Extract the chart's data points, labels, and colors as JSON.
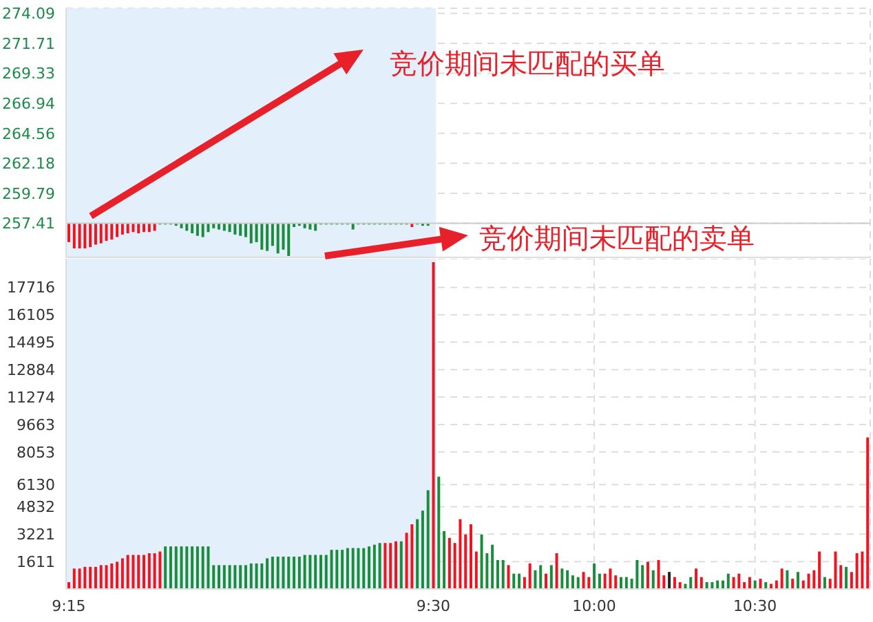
{
  "chart_data": [
    {
      "type": "bar",
      "categories": [
        "9:15",
        null,
        null,
        null,
        null,
        null,
        null,
        null,
        null,
        null,
        null,
        null,
        null,
        null,
        null,
        null,
        null,
        null,
        null,
        null,
        null,
        null,
        null,
        null,
        null,
        null,
        null,
        null,
        null,
        null,
        null,
        null,
        null,
        null,
        null,
        null,
        null,
        null,
        null,
        null,
        null,
        null,
        null,
        null,
        null,
        null,
        null,
        null,
        null,
        null,
        null,
        null,
        null,
        null,
        null,
        null,
        null,
        null,
        null,
        null,
        null,
        null,
        null,
        null,
        null,
        null,
        null,
        null,
        "9:30",
        null,
        null,
        null,
        null,
        null,
        null,
        null,
        null,
        null,
        null,
        null,
        null,
        null,
        null,
        null,
        null,
        null,
        null,
        null,
        null,
        null,
        null,
        null,
        null,
        null,
        null,
        null,
        null,
        null,
        "10:00",
        null,
        null,
        null,
        null,
        null,
        null,
        null,
        null,
        null,
        null,
        null,
        null,
        null,
        null,
        null,
        null,
        null,
        null,
        null,
        null,
        null,
        null,
        null,
        null,
        null,
        null,
        null,
        null,
        null,
        "10:30",
        null,
        null,
        null,
        null,
        null,
        null,
        null,
        null,
        null,
        null,
        null,
        null,
        null,
        null,
        null,
        null,
        null,
        null,
        null,
        null,
        null
      ],
      "series": [
        {
          "values": [
            -1.5,
            -2.0,
            -2.0,
            -2.0,
            -1.9,
            -1.7,
            -1.6,
            -1.4,
            -1.3,
            -1.1,
            -0.9,
            -0.8,
            -0.7,
            -0.8,
            -0.7,
            -0.7,
            -0.6,
            -0.1,
            -0.1,
            -0.1,
            -0.2,
            -0.4,
            -0.6,
            -0.8,
            -1.0,
            -1.1,
            -0.7,
            -0.4,
            -0.5,
            -0.6,
            -0.7,
            -0.9,
            -1.0,
            -1.1,
            -1.6,
            -1.5,
            -2.1,
            -2.2,
            -1.8,
            -2.4,
            -2.1,
            -2.6,
            -0.3,
            -0.2,
            -0.4,
            -0.5,
            -0.6,
            -0.1,
            -0.1,
            -0.1,
            -0.1,
            -0.1,
            -0.1,
            -0.5,
            -0.1,
            -0.1,
            -0.1,
            -0.1,
            -0.1,
            -0.1,
            -0.1,
            -0.1,
            -0.1,
            -0.1,
            -0.3,
            -0.1,
            -0.2,
            -0.2,
            null,
            null,
            null,
            null,
            null,
            null,
            null,
            null,
            null,
            null,
            null,
            null,
            null,
            null,
            null,
            null,
            null,
            null,
            null,
            null,
            null,
            null,
            null,
            null,
            null,
            null,
            null,
            null,
            null,
            null,
            null,
            null,
            null,
            null,
            null,
            null,
            null,
            null,
            null,
            null,
            null,
            null,
            null,
            null,
            null,
            null,
            null,
            null,
            null,
            null,
            null,
            null,
            null,
            null,
            null,
            null,
            null,
            null,
            null,
            null,
            null,
            null,
            null,
            null,
            null,
            null,
            null,
            null,
            null,
            null,
            null,
            null,
            null,
            null,
            null,
            null,
            null,
            null,
            null,
            null,
            null,
            null
          ],
          "colors": [
            "#f0141e",
            "#f0141e",
            "#f0141e",
            "#f0141e",
            "#f0141e",
            "#f0141e",
            "#f0141e",
            "#f0141e",
            "#f0141e",
            "#f0141e",
            "#f0141e",
            "#f0141e",
            "#f0141e",
            "#f0141e",
            "#f0141e",
            "#f0141e",
            "#f0141e",
            "#1a8c3c",
            "#1a8c3c",
            "#1a8c3c",
            "#1a8c3c",
            "#1a8c3c",
            "#1a8c3c",
            "#1a8c3c",
            "#1a8c3c",
            "#1a8c3c",
            "#1a8c3c",
            "#1a8c3c",
            "#1a8c3c",
            "#1a8c3c",
            "#1a8c3c",
            "#1a8c3c",
            "#1a8c3c",
            "#1a8c3c",
            "#1a8c3c",
            "#1a8c3c",
            "#1a8c3c",
            "#1a8c3c",
            "#1a8c3c",
            "#1a8c3c",
            "#1a8c3c",
            "#1a8c3c",
            "#1a8c3c",
            "#1a8c3c",
            "#1a8c3c",
            "#1a8c3c",
            "#1a8c3c",
            "#1a8c3c",
            "#1a8c3c",
            "#1a8c3c",
            "#1a8c3c",
            "#1a8c3c",
            "#1a8c3c",
            "#1a8c3c",
            "#1a8c3c",
            "#1a8c3c",
            "#1a8c3c",
            "#1a8c3c",
            "#1a8c3c",
            "#1a8c3c",
            "#1a8c3c",
            "#1a8c3c",
            "#1a8c3c",
            "#1a8c3c",
            "#f0141e",
            "#1a8c3c",
            "#1a8c3c",
            "#1a8c3c",
            null,
            null,
            null,
            null,
            null,
            null,
            null,
            null,
            null,
            null,
            null,
            null,
            null,
            null,
            null,
            null,
            null,
            null,
            null,
            null,
            null,
            null,
            null,
            null,
            null,
            null,
            null,
            null,
            null,
            null,
            null,
            null,
            null,
            null,
            null,
            null,
            null,
            null,
            null,
            null,
            null,
            null,
            null,
            null,
            null,
            null,
            null,
            null,
            null,
            null,
            null,
            null,
            null,
            null,
            null,
            null,
            null,
            null,
            null,
            null,
            null,
            null,
            null,
            null,
            null,
            null,
            null,
            null,
            null,
            null,
            null,
            null,
            null,
            null,
            null,
            null,
            null,
            null,
            null,
            null,
            null,
            null
          ],
          "base": [
            257.41,
            257.41,
            257.41,
            257.41,
            257.41,
            257.41,
            257.41,
            257.41,
            257.41,
            257.41,
            257.41,
            257.41,
            257.41,
            257.41,
            257.41,
            257.41,
            257.41,
            257.41,
            257.41,
            257.41,
            257.41,
            257.41,
            257.41,
            257.41,
            257.41,
            257.41,
            257.41,
            257.41,
            257.41,
            257.41,
            257.41,
            257.41,
            257.41,
            257.41,
            257.41,
            257.41,
            257.41,
            257.41,
            257.41,
            257.41,
            257.41,
            257.41,
            257.41,
            257.41,
            257.41,
            257.41,
            257.41,
            257.41,
            257.41,
            257.41,
            257.41,
            257.41,
            257.41,
            257.41,
            257.41,
            257.41,
            257.41,
            257.41,
            257.41,
            257.41,
            257.41,
            257.41,
            257.41,
            257.41,
            257.41,
            257.41,
            257.41,
            257.41,
            null,
            null,
            null,
            null,
            null,
            null,
            null,
            null,
            null,
            null,
            null,
            null,
            null,
            null,
            null,
            null,
            null,
            null,
            null,
            null,
            null,
            null,
            null,
            null,
            null,
            null,
            null,
            null,
            null,
            null,
            null,
            null,
            null,
            null,
            null,
            null,
            null,
            null,
            null,
            null,
            null,
            null,
            null,
            null,
            null,
            null,
            null,
            null,
            null,
            null,
            null,
            null,
            null,
            null,
            null,
            null,
            null,
            null,
            null,
            null,
            null,
            null,
            null,
            null,
            null,
            null,
            null,
            null,
            null,
            null,
            null,
            null,
            null,
            null,
            null,
            null,
            null,
            null,
            null,
            null,
            null,
            null
          ]
        }
      ],
      "ylim": [
        254.7,
        274.5
      ],
      "yticks": [
        257.41,
        259.79,
        262.18,
        264.56,
        266.94,
        269.33,
        271.71,
        274.09
      ],
      "tick_labels": "y",
      "grid": true,
      "ref_lines": [
        {
          "axis": "y",
          "value": 257.41,
          "color": "#cccccc",
          "line_style": "solid"
        }
      ],
      "bands": [
        {
          "axis": "x",
          "from": "9:15",
          "to": "9:30",
          "color": "#e3f0fc"
        }
      ],
      "annotations": [
        "竞价期间未匹配的买单",
        "竞价期间未匹配的卖单"
      ]
    },
    {
      "type": "bar",
      "categories": [
        "9:15",
        null,
        null,
        null,
        null,
        null,
        null,
        null,
        null,
        null,
        null,
        null,
        null,
        null,
        null,
        null,
        null,
        null,
        null,
        null,
        null,
        null,
        null,
        null,
        null,
        null,
        null,
        null,
        null,
        null,
        null,
        null,
        null,
        null,
        null,
        null,
        null,
        null,
        null,
        null,
        null,
        null,
        null,
        null,
        null,
        null,
        null,
        null,
        null,
        null,
        null,
        null,
        null,
        null,
        null,
        null,
        null,
        null,
        null,
        null,
        null,
        null,
        null,
        null,
        null,
        null,
        null,
        null,
        "9:30",
        null,
        null,
        null,
        null,
        null,
        null,
        null,
        null,
        null,
        null,
        null,
        null,
        null,
        null,
        null,
        null,
        null,
        null,
        null,
        null,
        null,
        null,
        null,
        null,
        null,
        null,
        null,
        null,
        null,
        "10:00",
        null,
        null,
        null,
        null,
        null,
        null,
        null,
        null,
        null,
        null,
        null,
        null,
        null,
        null,
        null,
        null,
        null,
        null,
        null,
        null,
        null,
        null,
        null,
        null,
        null,
        null,
        null,
        null,
        null,
        "10:30",
        null,
        null,
        null,
        null,
        null,
        null,
        null,
        null,
        null,
        null,
        null,
        null,
        null,
        null,
        null,
        null,
        null,
        null,
        null,
        null,
        null
      ],
      "values": [
        400,
        1200,
        1200,
        1300,
        1300,
        1300,
        1400,
        1400,
        1500,
        1600,
        1800,
        2000,
        2000,
        2000,
        2000,
        2100,
        2100,
        2200,
        2500,
        2500,
        2500,
        2500,
        2500,
        2500,
        2500,
        2500,
        2500,
        1400,
        1400,
        1400,
        1400,
        1400,
        1400,
        1400,
        1500,
        1500,
        1500,
        1800,
        1900,
        1900,
        1900,
        1900,
        1900,
        1900,
        2000,
        2000,
        2000,
        2000,
        2000,
        2300,
        2300,
        2300,
        2400,
        2400,
        2400,
        2400,
        2500,
        2600,
        2700,
        2700,
        2700,
        2800,
        2800,
        3300,
        3800,
        4100,
        4600,
        5800,
        19200,
        6600,
        3400,
        3000,
        2700,
        4100,
        3200,
        3800,
        2200,
        3200,
        2100,
        2600,
        1700,
        1700,
        1400,
        900,
        900,
        700,
        1500,
        1100,
        1400,
        900,
        1400,
        2100,
        1200,
        1100,
        800,
        700,
        1000,
        700,
        1500,
        900,
        900,
        1200,
        800,
        700,
        700,
        600,
        1700,
        1400,
        1600,
        1100,
        1700,
        800,
        1000,
        700,
        400,
        300,
        700,
        1200,
        700,
        400,
        400,
        500,
        500,
        900,
        700,
        900,
        400,
        700,
        500,
        600,
        400,
        300,
        500,
        1200,
        1100,
        600,
        1000,
        500,
        900,
        1100,
        2200,
        700,
        600,
        2200,
        1400,
        1300,
        1000,
        2100,
        2200,
        8900
      ],
      "colors": [
        "#f0141e",
        "#f0141e",
        "#f0141e",
        "#f0141e",
        "#f0141e",
        "#f0141e",
        "#f0141e",
        "#f0141e",
        "#f0141e",
        "#f0141e",
        "#f0141e",
        "#f0141e",
        "#f0141e",
        "#f0141e",
        "#f0141e",
        "#f0141e",
        "#f0141e",
        "#f0141e",
        "#1a8c3c",
        "#1a8c3c",
        "#1a8c3c",
        "#1a8c3c",
        "#1a8c3c",
        "#1a8c3c",
        "#1a8c3c",
        "#1a8c3c",
        "#1a8c3c",
        "#1a8c3c",
        "#1a8c3c",
        "#1a8c3c",
        "#1a8c3c",
        "#1a8c3c",
        "#1a8c3c",
        "#1a8c3c",
        "#1a8c3c",
        "#1a8c3c",
        "#1a8c3c",
        "#1a8c3c",
        "#1a8c3c",
        "#1a8c3c",
        "#1a8c3c",
        "#1a8c3c",
        "#1a8c3c",
        "#1a8c3c",
        "#1a8c3c",
        "#1a8c3c",
        "#1a8c3c",
        "#1a8c3c",
        "#1a8c3c",
        "#1a8c3c",
        "#1a8c3c",
        "#1a8c3c",
        "#1a8c3c",
        "#1a8c3c",
        "#1a8c3c",
        "#1a8c3c",
        "#1a8c3c",
        "#1a8c3c",
        "#1a8c3c",
        "#f0141e",
        "#f0141e",
        "#f0141e",
        "#1a8c3c",
        "#f0141e",
        "#f0141e",
        "#1a8c3c",
        "#1a8c3c",
        "#1a8c3c",
        "#f0141e",
        "#1a8c3c",
        "#1a8c3c",
        "#f0141e",
        "#f0141e",
        "#f0141e",
        "#f0141e",
        "#f0141e",
        "#f0141e",
        "#1a8c3c",
        "#1a8c3c",
        "#1a8c3c",
        "#1a8c3c",
        "#1a8c3c",
        "#f0141e",
        "#1a8c3c",
        "#1a8c3c",
        "#f0141e",
        "#f0141e",
        "#1a8c3c",
        "#1a8c3c",
        "#f0141e",
        "#1a8c3c",
        "#f0141e",
        "#1a8c3c",
        "#1a8c3c",
        "#1a8c3c",
        "#1a8c3c",
        "#f0141e",
        "#f0141e",
        "#1a8c3c",
        "#1a8c3c",
        "#f0141e",
        "#f0141e",
        "#f0141e",
        "#1a8c3c",
        "#1a8c3c",
        "#1a8c3c",
        "#1a8c3c",
        "#1a8c3c",
        "#f0141e",
        "#1a8c3c",
        "#f0141e",
        "#f0141e",
        "#222222",
        "#f0141e",
        "#f0141e",
        "#1a8c3c",
        "#1a8c3c",
        "#f0141e",
        "#f0141e",
        "#1a8c3c",
        "#1a8c3c",
        "#1a8c3c",
        "#1a8c3c",
        "#1a8c3c",
        "#f0141e",
        "#f0141e",
        "#f0141e",
        "#f0141e",
        "#1a8c3c",
        "#f0141e",
        "#1a8c3c",
        "#f0141e",
        "#f0141e",
        "#f0141e",
        "#1a8c3c",
        "#f0141e",
        "#1a8c3c",
        "#f0141e",
        "#f0141e",
        "#f0141e",
        "#f0141e",
        "#1a8c3c",
        "#f0141e",
        "#f0141e",
        "#f0141e",
        "#1a8c3c",
        "#f0141e",
        "#f0141e",
        "#f0141e",
        "#f0141e"
      ],
      "ylim": [
        0,
        19400
      ],
      "yticks": [
        1611,
        3221,
        4832,
        6130,
        8053,
        9663,
        11274,
        12884,
        14495,
        16105,
        17716
      ],
      "grid": true,
      "bands": [
        {
          "axis": "x",
          "from": "9:15",
          "to": "9:30",
          "color": "#e3f0fc"
        }
      ]
    }
  ]
}
